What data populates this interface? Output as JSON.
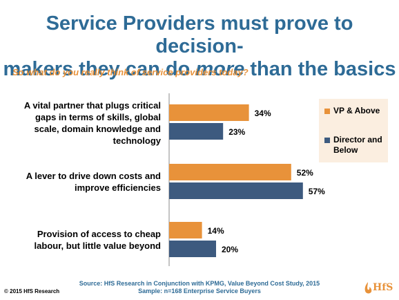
{
  "title_part1": "Service Providers must prove to decision-",
  "title_part2": "makers they can do ",
  "title_emph": "more",
  "title_part3": " than the basics",
  "subtitle": "So what do you really think of service providers today?",
  "source_line1": "Source: HfS Research in Conjunction with KPMG, Value Beyond Cost Study, 2015",
  "source_line2": "Sample: n=168 Enterprise Service Buyers",
  "copyright": "© 2015 HfS Research",
  "logo_text": "HfS",
  "chart_data": {
    "type": "bar",
    "orientation": "horizontal",
    "categories": [
      "A vital partner that plugs critical gaps in terms of skills, global scale, domain knowledge and technology",
      "A lever to drive down costs and improve efficiencies",
      "Provision of access to cheap labour, but little value beyond"
    ],
    "category_lines": [
      [
        "A vital partner that plugs critical",
        "gaps in terms of skills, global",
        "scale, domain knowledge and",
        "technology"
      ],
      [
        "A lever to drive down costs and",
        "improve efficiencies"
      ],
      [
        "Provision of access to cheap",
        "labour, but little value beyond"
      ]
    ],
    "series": [
      {
        "name": "VP & Above",
        "values": [
          34,
          52,
          14
        ],
        "labels": [
          "34%",
          "52%",
          "14%"
        ],
        "color": "#e8923a"
      },
      {
        "name": "Director and Below",
        "values": [
          23,
          57,
          20
        ],
        "labels": [
          "23%",
          "57%",
          "20%"
        ],
        "color": "#3d5a7f"
      }
    ],
    "xlim": [
      0,
      60
    ],
    "legend": {
      "position": "right",
      "lines": [
        [
          "VP & Above"
        ],
        [
          "Director and",
          "Below"
        ]
      ]
    },
    "grid": false
  }
}
